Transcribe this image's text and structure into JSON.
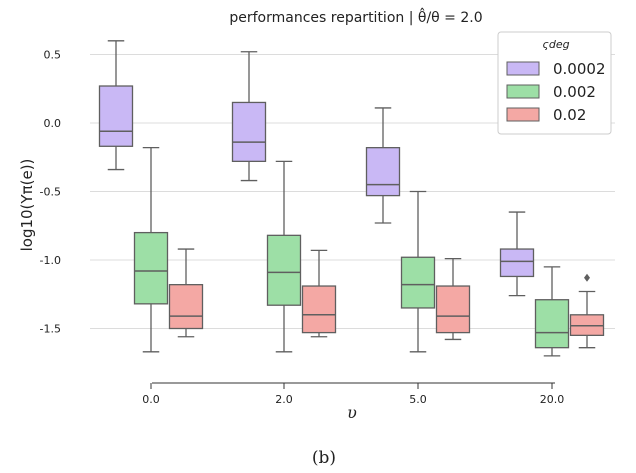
{
  "title": "performances repartition | θ̂/θ = 2.0",
  "caption": "(b)",
  "chart_data": {
    "type": "box",
    "xlabel": "υ",
    "ylabel": "log10(Υπ(e))",
    "categories": [
      "0.0",
      "2.0",
      "5.0",
      "20.0"
    ],
    "ylim": [
      -1.75,
      0.62
    ],
    "yticks": [
      0.5,
      0.0,
      -0.5,
      -1.0,
      -1.5
    ],
    "ytick_labels": [
      "0.5",
      "0.0",
      "-0.5",
      "-1.0",
      "-1.5"
    ],
    "grid": true,
    "legend": {
      "title": "ςdeg",
      "placement": "top-right",
      "entries": [
        "0.0002",
        "0.002",
        "0.02"
      ]
    },
    "series": [
      {
        "name": "0.0002",
        "color": "#c9b8f5",
        "boxes": [
          {
            "whislo": -0.34,
            "q1": -0.17,
            "med": -0.06,
            "q3": 0.27,
            "whishi": 0.6
          },
          {
            "whislo": -0.42,
            "q1": -0.28,
            "med": -0.14,
            "q3": 0.15,
            "whishi": 0.52
          },
          {
            "whislo": -0.73,
            "q1": -0.53,
            "med": -0.45,
            "q3": -0.18,
            "whishi": 0.11
          },
          {
            "whislo": -1.26,
            "q1": -1.12,
            "med": -1.01,
            "q3": -0.92,
            "whishi": -0.65
          }
        ]
      },
      {
        "name": "0.002",
        "color": "#9ddfa6",
        "boxes": [
          {
            "whislo": -1.67,
            "q1": -1.32,
            "med": -1.08,
            "q3": -0.8,
            "whishi": -0.18
          },
          {
            "whislo": -1.67,
            "q1": -1.33,
            "med": -1.09,
            "q3": -0.82,
            "whishi": -0.28
          },
          {
            "whislo": -1.67,
            "q1": -1.35,
            "med": -1.18,
            "q3": -0.98,
            "whishi": -0.5
          },
          {
            "whislo": -1.7,
            "q1": -1.64,
            "med": -1.53,
            "q3": -1.29,
            "whishi": -1.05
          }
        ]
      },
      {
        "name": "0.02",
        "color": "#f4a8a4",
        "boxes": [
          {
            "whislo": -1.56,
            "q1": -1.5,
            "med": -1.41,
            "q3": -1.18,
            "whishi": -0.92
          },
          {
            "whislo": -1.56,
            "q1": -1.53,
            "med": -1.4,
            "q3": -1.19,
            "whishi": -0.93
          },
          {
            "whislo": -1.58,
            "q1": -1.53,
            "med": -1.41,
            "q3": -1.19,
            "whishi": -0.99
          },
          {
            "whislo": -1.64,
            "q1": -1.55,
            "med": -1.48,
            "q3": -1.4,
            "whishi": -1.23,
            "fliers": [
              -1.13
            ]
          }
        ]
      }
    ]
  }
}
